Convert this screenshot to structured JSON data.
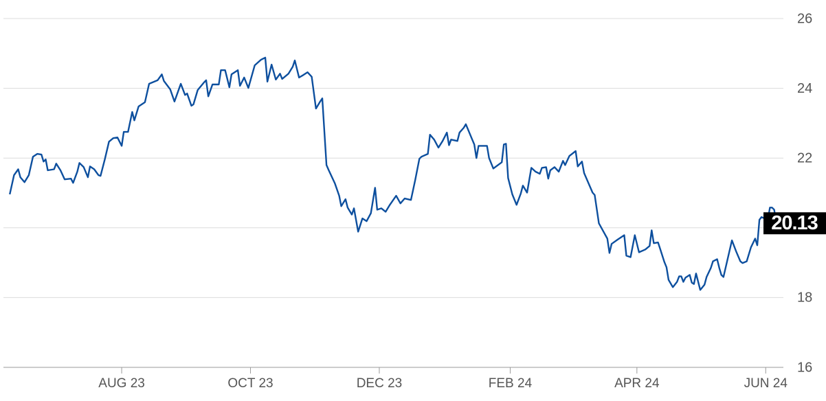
{
  "chart_data": {
    "type": "line",
    "color": "#0d4f9e",
    "grid": true,
    "xlim": [
      -3,
      368
    ],
    "ylim": [
      16,
      26
    ],
    "yticks": [
      16,
      18,
      20,
      22,
      24,
      26
    ],
    "xticks": [
      {
        "value": 53,
        "label": "AUG 23"
      },
      {
        "value": 114,
        "label": "OCT 23"
      },
      {
        "value": 175,
        "label": "DEC 23"
      },
      {
        "value": 237,
        "label": "FEB 24"
      },
      {
        "value": 297,
        "label": "APR 24"
      },
      {
        "value": 358,
        "label": "JUN 24"
      }
    ],
    "x": [
      0,
      2,
      4,
      5,
      7,
      9,
      11,
      13,
      15,
      16,
      17,
      18,
      21,
      22,
      24,
      26,
      29,
      30,
      32,
      33,
      35,
      37,
      38,
      40,
      42,
      43,
      45,
      47,
      49,
      51,
      53,
      54,
      56,
      58,
      59,
      61,
      64,
      66,
      70,
      72,
      73,
      76,
      78,
      81,
      83,
      84,
      86,
      87,
      89,
      92,
      93,
      94,
      96,
      99,
      100,
      102,
      104,
      105,
      108,
      109,
      111,
      113,
      116,
      119,
      121,
      122,
      124,
      126,
      128,
      129,
      132,
      134,
      135,
      137,
      139,
      141,
      143,
      145,
      147,
      148,
      150,
      151,
      154,
      156,
      157,
      159,
      160,
      162,
      163,
      165,
      167,
      169,
      171,
      173,
      174,
      176,
      178,
      180,
      183,
      185,
      187,
      190,
      192,
      194,
      195,
      198,
      199,
      201,
      203,
      205,
      207,
      208,
      209,
      212,
      213,
      215,
      216,
      219,
      220,
      221,
      222,
      226,
      227,
      229,
      233,
      234,
      235,
      236,
      238,
      240,
      242,
      243,
      245,
      247,
      249,
      251,
      252,
      254,
      255,
      256,
      258,
      260,
      262,
      263,
      265,
      268,
      269,
      271,
      272,
      276,
      277,
      279,
      281,
      283,
      284,
      285,
      288,
      291,
      292,
      294,
      296,
      298,
      301,
      303,
      304,
      305,
      307,
      308,
      310,
      311,
      312,
      314,
      316,
      317,
      318,
      319,
      320,
      322,
      323,
      324,
      325,
      327,
      329,
      330,
      332,
      333,
      335,
      336,
      337,
      338,
      342,
      344,
      346,
      347,
      349,
      351,
      353,
      354,
      355,
      356,
      359,
      360,
      361,
      362,
      363,
      367
    ],
    "values": [
      20.96,
      21.51,
      21.68,
      21.45,
      21.31,
      21.51,
      22.04,
      22.12,
      22.1,
      21.9,
      21.96,
      21.65,
      21.68,
      21.84,
      21.65,
      21.39,
      21.41,
      21.29,
      21.61,
      21.86,
      21.74,
      21.45,
      21.76,
      21.68,
      21.51,
      21.49,
      21.96,
      22.47,
      22.57,
      22.59,
      22.35,
      22.75,
      22.75,
      23.32,
      23.08,
      23.48,
      23.6,
      24.13,
      24.23,
      24.4,
      24.21,
      23.97,
      23.62,
      24.13,
      23.81,
      23.85,
      23.5,
      23.54,
      23.95,
      24.17,
      24.23,
      23.77,
      24.11,
      24.11,
      24.52,
      24.52,
      24.03,
      24.4,
      24.52,
      24.07,
      24.31,
      24.01,
      24.66,
      24.82,
      24.88,
      24.19,
      24.68,
      24.25,
      24.42,
      24.27,
      24.42,
      24.62,
      24.8,
      24.31,
      24.38,
      24.46,
      24.33,
      23.42,
      23.62,
      23.71,
      21.8,
      21.66,
      21.27,
      20.92,
      20.62,
      20.82,
      20.58,
      20.38,
      20.56,
      19.89,
      20.27,
      20.19,
      20.42,
      21.15,
      20.52,
      20.56,
      20.46,
      20.66,
      20.92,
      20.7,
      20.84,
      20.8,
      21.37,
      21.98,
      22.04,
      22.12,
      22.67,
      22.53,
      22.3,
      22.49,
      22.73,
      22.37,
      22.53,
      22.49,
      22.73,
      22.87,
      22.97,
      22.53,
      22.39,
      22.0,
      22.35,
      22.35,
      22.0,
      21.7,
      21.88,
      22.39,
      22.41,
      21.43,
      20.96,
      20.66,
      20.98,
      21.21,
      21.01,
      21.72,
      21.61,
      21.55,
      21.72,
      21.74,
      21.41,
      21.65,
      21.74,
      21.61,
      21.92,
      21.8,
      22.06,
      22.2,
      21.76,
      21.9,
      21.57,
      21.01,
      20.94,
      20.13,
      19.91,
      19.69,
      19.28,
      19.54,
      19.67,
      19.79,
      19.2,
      19.16,
      19.79,
      19.3,
      19.38,
      19.48,
      19.93,
      19.56,
      19.58,
      19.4,
      19.02,
      18.87,
      18.51,
      18.3,
      18.45,
      18.61,
      18.61,
      18.45,
      18.57,
      18.65,
      18.43,
      18.39,
      18.69,
      18.22,
      18.37,
      18.59,
      18.85,
      19.04,
      19.1,
      18.85,
      18.65,
      18.59,
      19.64,
      19.32,
      19.04,
      18.99,
      19.04,
      19.44,
      19.69,
      19.5,
      20.23,
      20.31,
      20.23,
      20.58,
      20.58,
      20.52,
      20.15,
      20.13
    ]
  }
}
